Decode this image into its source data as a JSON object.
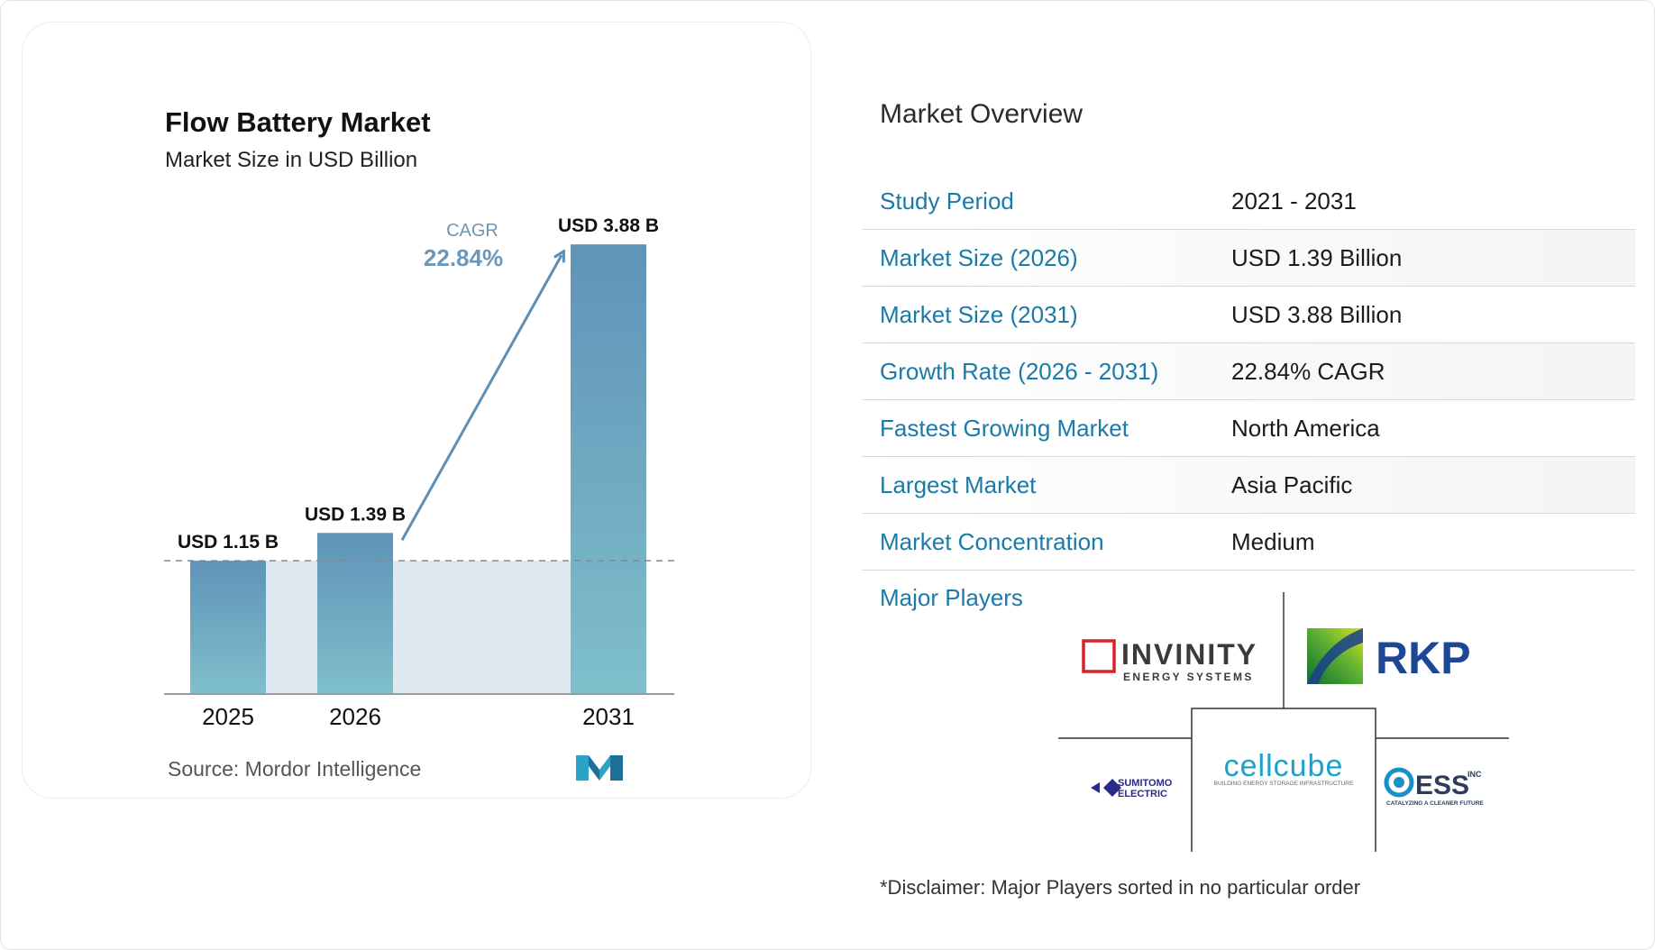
{
  "chart_data": {
    "type": "bar",
    "title": "Flow Battery Market",
    "subtitle": "Market Size in USD Billion",
    "categories": [
      "2025",
      "2026",
      "2031"
    ],
    "values": [
      1.15,
      1.39,
      3.88
    ],
    "value_labels": [
      "USD 1.15 B",
      "USD 1.39 B",
      "USD 3.88 B"
    ],
    "ylim": [
      0,
      4.2
    ],
    "cagr_label": "CAGR",
    "cagr_value": "22.84%",
    "source": "Source:  Mordor Intelligence",
    "grid": false
  },
  "colors": {
    "bar_top": "#5f93b8",
    "bar_bottom": "#7fbfcb",
    "arrow": "#5d8fb4",
    "label_accent": "#1a7aa8",
    "area_fill": "#dfe9f1"
  },
  "overview": {
    "title": "Market Overview",
    "rows": [
      {
        "label": "Study Period",
        "value": "2021 - 2031"
      },
      {
        "label": "Market Size (2026)",
        "value": "USD 1.39 Billion"
      },
      {
        "label": "Market Size (2031)",
        "value": "USD 3.88 Billion"
      },
      {
        "label": "Growth Rate (2026 - 2031)",
        "value": "22.84% CAGR"
      },
      {
        "label": "Fastest Growing Market",
        "value": "North America"
      },
      {
        "label": "Largest Market",
        "value": "Asia Pacific"
      },
      {
        "label": "Market Concentration",
        "value": "Medium"
      }
    ],
    "major_players_label": "Major Players",
    "players": {
      "invinity_name": "INVINITY",
      "invinity_sub": "ENERGY SYSTEMS",
      "rkp": "RKP",
      "sumitomo_line1": "SUMITOMO",
      "sumitomo_line2": "ELECTRIC",
      "cellcube": "cellcube",
      "cellcube_sub": "BUILDING ENERGY STORAGE INFRASTRUCTURE",
      "ess": "ESS",
      "ess_sup": "INC",
      "ess_sub": "CATALYZING A CLEANER FUTURE"
    },
    "disclaimer": "*Disclaimer: Major Players sorted in no particular order"
  }
}
